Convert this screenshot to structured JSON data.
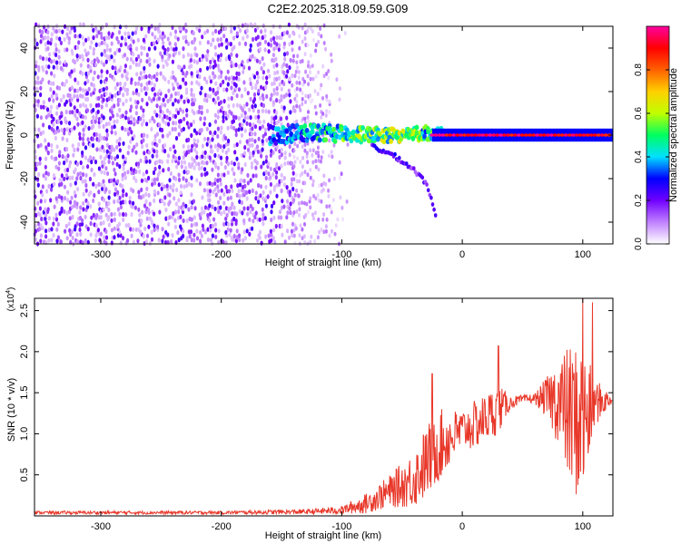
{
  "page_title": "C2E2.2025.318.09.59.G09",
  "colors": {
    "snr_line": "#e8382a",
    "axis": "#000000",
    "colormap_stops": [
      "#ffffff",
      "#c080ff",
      "#7000ff",
      "#0000ff",
      "#00e0ff",
      "#00ff60",
      "#c0ff00",
      "#ffd000",
      "#ff6000",
      "#ff0000",
      "#ff00a0"
    ]
  },
  "chart_data": [
    {
      "type": "heatmap",
      "title": "C2E2.2025.318.09.59.G09",
      "xlabel": "Height of straight line (km)",
      "ylabel": "Frequency (Hz)",
      "xlim": [
        -355,
        125
      ],
      "ylim": [
        -50,
        50
      ],
      "xticks": [
        -300,
        -200,
        -100,
        0,
        100
      ],
      "yticks": [
        -40,
        -20,
        0,
        20,
        40
      ],
      "series": [
        {
          "name": "noise field (low amplitude)",
          "x_range": [
            -355,
            -140
          ],
          "freq_range": [
            -50,
            50
          ],
          "amplitude": [
            0.05,
            0.25
          ]
        },
        {
          "name": "scattered noise (fading)",
          "x_range": [
            -140,
            -95
          ],
          "freq_range": [
            -50,
            50
          ],
          "amplitude": [
            0.02,
            0.12
          ]
        },
        {
          "name": "signal ridge (broadening)",
          "x": [
            -160,
            -120,
            -80,
            -50,
            -30,
            -15
          ],
          "center_hz": [
            0,
            1,
            0,
            0,
            1,
            0
          ],
          "amplitude": [
            0.35,
            0.45,
            0.55,
            0.6,
            0.5,
            0.55
          ]
        },
        {
          "name": "descending trace",
          "x": [
            -75,
            -55,
            -40,
            -30,
            -25,
            -22
          ],
          "center_hz": [
            -5,
            -10,
            -16,
            -22,
            -30,
            -38
          ],
          "amplitude": [
            0.25,
            0.25,
            0.2,
            0.2,
            0.2,
            0.2
          ]
        },
        {
          "name": "carrier line (stable)",
          "x_range": [
            -25,
            125
          ],
          "center_hz": 0,
          "amplitude": 1.0
        }
      ],
      "colorbar": {
        "label": "Normalized spectral amplitude",
        "range": [
          0,
          1
        ],
        "ticks": [
          "0.0",
          "0.2",
          "0.4",
          "0.6",
          "0.8"
        ]
      }
    },
    {
      "type": "line",
      "xlabel": "Height of straight line (km)",
      "ylabel": "SNR (10 * v/v)",
      "y_scale_label": "(x10",
      "y_scale_exponent": "4",
      "xlim": [
        -355,
        125
      ],
      "ylim": [
        0,
        2.65
      ],
      "xticks": [
        -300,
        -200,
        -100,
        0,
        100
      ],
      "yticks": [
        0.5,
        1.0,
        1.5,
        2.0,
        2.5
      ],
      "series": [
        {
          "name": "SNR",
          "envelope_x": [
            -355,
            -300,
            -200,
            -130,
            -100,
            -80,
            -60,
            -40,
            -30,
            -20,
            -10,
            0,
            10,
            20,
            30,
            40,
            50,
            60,
            70,
            80,
            90,
            100,
            110,
            125
          ],
          "mean": [
            0.04,
            0.04,
            0.04,
            0.05,
            0.07,
            0.15,
            0.3,
            0.45,
            0.65,
            0.85,
            0.95,
            1.05,
            1.1,
            1.2,
            1.3,
            1.38,
            1.42,
            1.43,
            1.44,
            1.4,
            1.2,
            1.1,
            1.38,
            1.42
          ],
          "amplitude": [
            0.02,
            0.02,
            0.02,
            0.03,
            0.05,
            0.12,
            0.2,
            0.35,
            0.45,
            0.45,
            0.35,
            0.25,
            0.3,
            0.3,
            0.3,
            0.08,
            0.05,
            0.06,
            0.25,
            0.55,
            0.9,
            1.0,
            0.3,
            0.04
          ],
          "peaks": [
            {
              "x": -25,
              "y": 1.73
            },
            {
              "x": 30,
              "y": 2.07
            },
            {
              "x": 100,
              "y": 2.65
            },
            {
              "x": 108,
              "y": 2.6
            }
          ]
        }
      ]
    }
  ]
}
